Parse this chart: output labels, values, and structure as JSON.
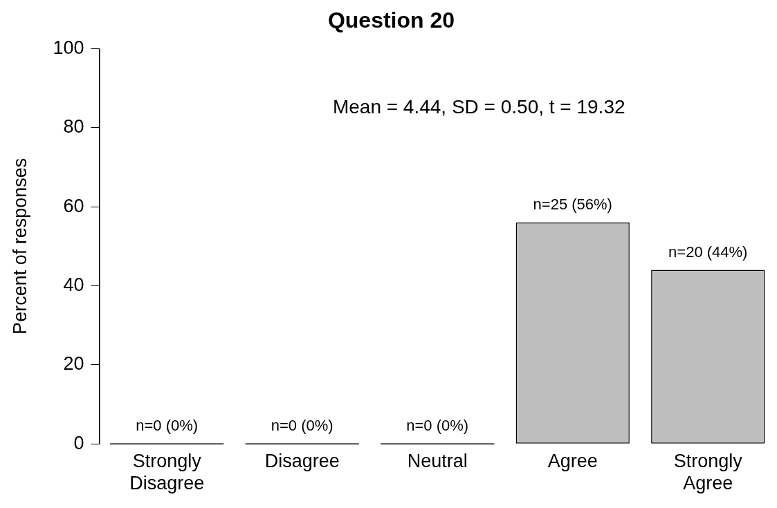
{
  "chart_data": {
    "type": "bar",
    "title": "Question 20",
    "ylabel": "Percent of responses",
    "categories": [
      "Strongly Disagree",
      "Disagree",
      "Neutral",
      "Agree",
      "Strongly Agree"
    ],
    "values": [
      0,
      0,
      0,
      56,
      44
    ],
    "color": "#bebebe",
    "value_labels": [
      "n=0 (0%)",
      "n=0 (0%)",
      "n=0 (0%)",
      "n=25 (56%)",
      "n=20 (44%)"
    ],
    "annotations": [
      "Mean = 4.44, SD = 0.50, t = 19.32"
    ],
    "ylim": [
      0,
      100
    ],
    "yticks": [
      0,
      20,
      40,
      60,
      80,
      100
    ],
    "grid": false,
    "legend": false
  }
}
